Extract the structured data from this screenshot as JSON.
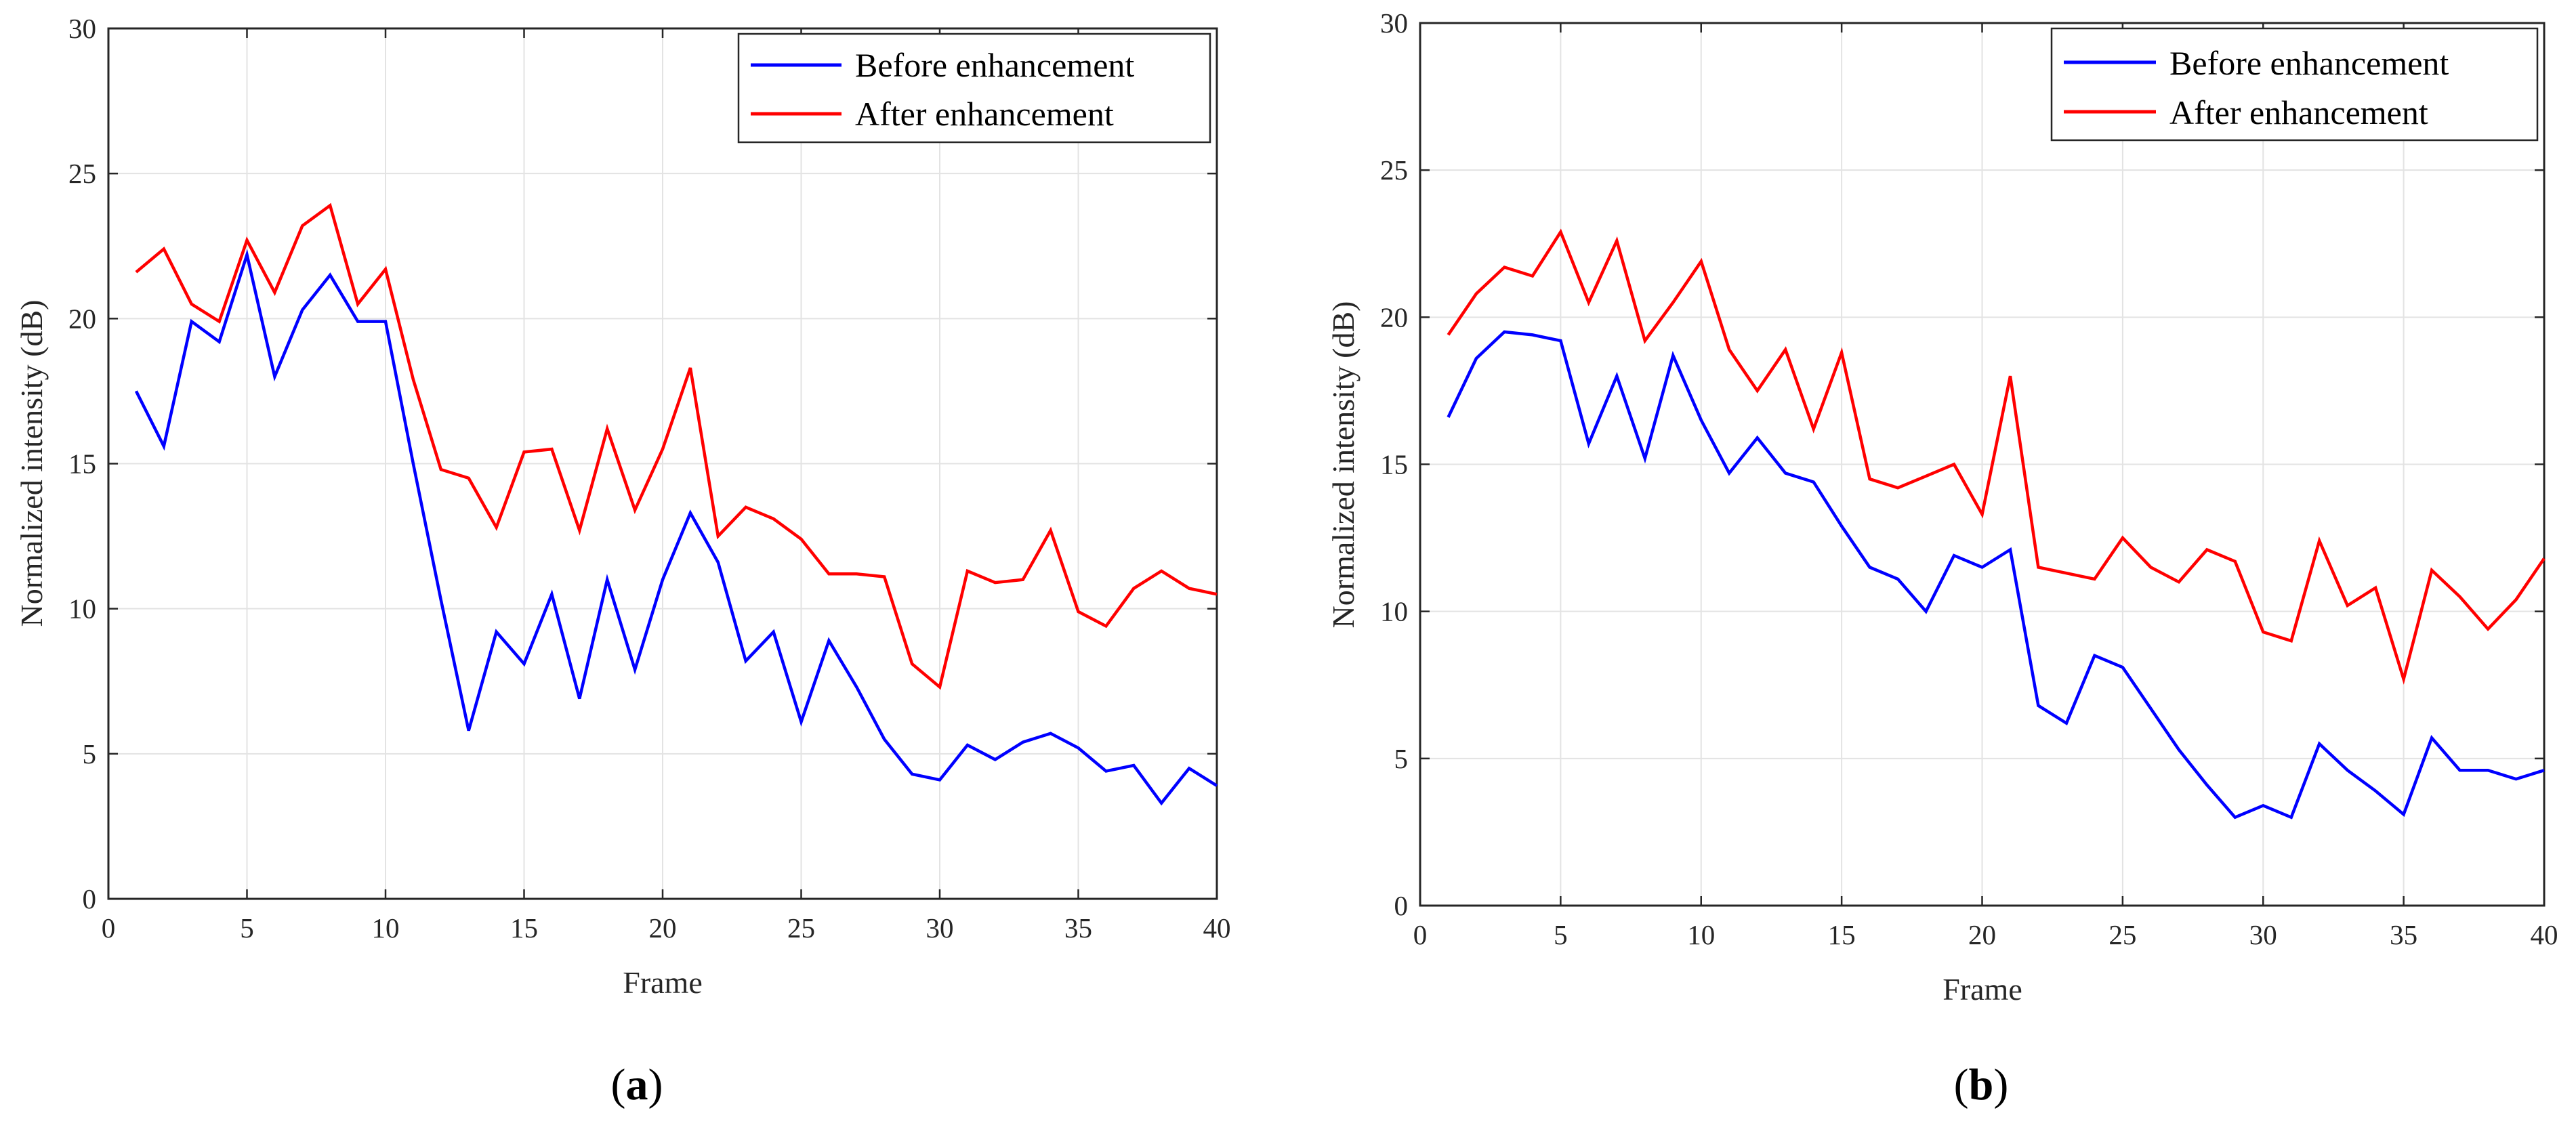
{
  "figure_captions": [
    "(a)",
    "(b)"
  ],
  "chart_data": [
    {
      "id": "a",
      "type": "line",
      "caption_letter": "a",
      "title": "",
      "xlabel": "Frame",
      "ylabel": "Normalized intensity (dB)",
      "xlim": [
        0,
        40
      ],
      "ylim": [
        0,
        30
      ],
      "xticks": [
        0,
        5,
        10,
        15,
        20,
        25,
        30,
        35,
        40
      ],
      "yticks": [
        0,
        5,
        10,
        15,
        20,
        25,
        30
      ],
      "grid": true,
      "legend_position": "top-right",
      "x": [
        1,
        2,
        3,
        4,
        5,
        6,
        7,
        8,
        9,
        10,
        11,
        12,
        13,
        14,
        15,
        16,
        17,
        18,
        19,
        20,
        21,
        22,
        23,
        24,
        25,
        26,
        27,
        28,
        29,
        30,
        31,
        32,
        33,
        34,
        35,
        36,
        37,
        38,
        39,
        40
      ],
      "series": [
        {
          "name": "Before enhancement",
          "color": "#0000ff",
          "values": [
            17.5,
            15.6,
            19.9,
            19.2,
            22.2,
            18.0,
            20.3,
            21.5,
            19.9,
            19.9,
            15.0,
            10.3,
            5.8,
            9.2,
            8.1,
            10.5,
            6.9,
            11.0,
            7.9,
            11.0,
            13.3,
            11.6,
            8.2,
            9.2,
            6.1,
            8.9,
            7.3,
            5.5,
            4.3,
            4.1,
            5.3,
            4.8,
            5.4,
            5.7,
            5.2,
            4.4,
            4.6,
            3.3,
            4.5,
            3.9
          ]
        },
        {
          "name": "After enhancement",
          "color": "#ff0000",
          "values": [
            21.6,
            22.4,
            20.5,
            19.9,
            22.7,
            20.9,
            23.2,
            23.9,
            20.5,
            21.7,
            17.9,
            14.8,
            14.5,
            12.8,
            15.4,
            15.5,
            12.7,
            16.2,
            13.4,
            15.5,
            18.3,
            12.5,
            13.5,
            13.1,
            12.4,
            11.2,
            11.2,
            11.1,
            8.1,
            7.3,
            11.3,
            10.9,
            11.0,
            12.7,
            9.9,
            9.4,
            10.7,
            11.3,
            10.7,
            10.5
          ]
        }
      ]
    },
    {
      "id": "b",
      "type": "line",
      "caption_letter": "b",
      "title": "",
      "xlabel": "Frame",
      "ylabel": "Normalized intensity (dB)",
      "xlim": [
        0,
        40
      ],
      "ylim": [
        0,
        30
      ],
      "xticks": [
        0,
        5,
        10,
        15,
        20,
        25,
        30,
        35,
        40
      ],
      "yticks": [
        0,
        5,
        10,
        15,
        20,
        25,
        30
      ],
      "grid": true,
      "legend_position": "top-right",
      "x": [
        1,
        2,
        3,
        4,
        5,
        6,
        7,
        8,
        9,
        10,
        11,
        12,
        13,
        14,
        15,
        16,
        17,
        18,
        19,
        20,
        21,
        22,
        23,
        24,
        25,
        26,
        27,
        28,
        29,
        30,
        31,
        32,
        33,
        34,
        35,
        36,
        37,
        38,
        39,
        40
      ],
      "series": [
        {
          "name": "Before enhancement",
          "color": "#0000ff",
          "values": [
            16.6,
            18.6,
            19.5,
            19.4,
            19.2,
            15.7,
            18.0,
            15.2,
            18.7,
            16.5,
            14.7,
            15.9,
            14.7,
            14.4,
            12.9,
            11.5,
            11.1,
            10.0,
            11.9,
            11.5,
            12.1,
            6.8,
            6.2,
            8.5,
            8.1,
            6.7,
            5.3,
            4.1,
            3.0,
            3.4,
            3.0,
            5.5,
            4.6,
            3.9,
            3.1,
            5.7,
            4.6,
            4.6,
            4.3,
            4.6
          ]
        },
        {
          "name": "After enhancement",
          "color": "#ff0000",
          "values": [
            19.4,
            20.8,
            21.7,
            21.4,
            22.9,
            20.5,
            22.6,
            19.2,
            20.5,
            21.9,
            18.9,
            17.5,
            18.9,
            16.2,
            18.8,
            14.5,
            14.2,
            14.6,
            15.0,
            13.3,
            18.0,
            11.5,
            11.3,
            11.1,
            12.5,
            11.5,
            11.0,
            12.1,
            11.7,
            9.3,
            9.0,
            12.4,
            10.2,
            10.8,
            7.7,
            11.4,
            10.5,
            9.4,
            10.4,
            11.8
          ]
        }
      ]
    }
  ]
}
